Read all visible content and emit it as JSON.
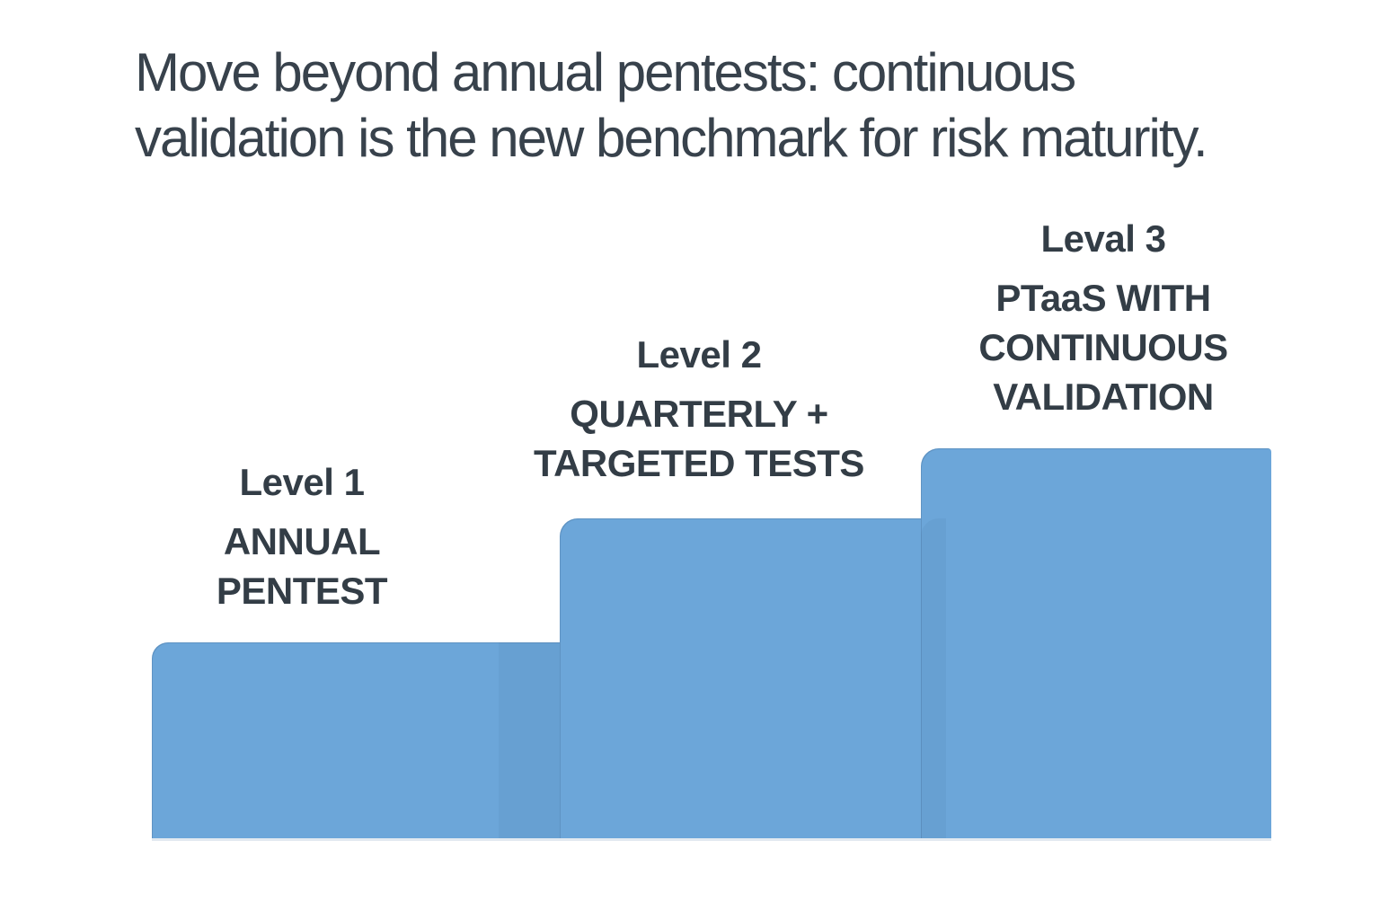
{
  "title": {
    "line1": "Move beyond annual pentests: continuous",
    "line2": "validation is the new benchmark for risk maturity.",
    "full": "Move beyond annual pentests: continuous validation is the new benchmark for risk maturity."
  },
  "colors": {
    "background": "#FFFFFF",
    "bar_blue": "#6CA6D9",
    "title_color": "#38424C",
    "label_color": "#333D46"
  },
  "chart_data": {
    "type": "bar",
    "title": "Move beyond annual pentests: continuous validation is the new benchmark for risk maturity.",
    "categories": [
      "Level 1",
      "Level 2",
      "Leval 3"
    ],
    "values": [
      1,
      2,
      3
    ],
    "relative_heights": [
      0.5,
      0.82,
      1.0
    ],
    "xlabel": "",
    "ylabel": "",
    "legend": false,
    "grid": false,
    "axes_shown": false,
    "bar_color": "#6CA6D9",
    "style_note": "ascending staircase of three flat blue steps, labels above each step",
    "levels": [
      {
        "level_label": "Level 1",
        "name": "ANNUAL PENTEST",
        "name_lines": [
          "ANNUAL",
          "PENTEST"
        ],
        "value": 1
      },
      {
        "level_label": "Level 2",
        "name": "QUARTERLY + TARGETED TESTS",
        "name_lines": [
          "QUARTERLY +",
          "TARGETED TESTS"
        ],
        "value": 2
      },
      {
        "level_label": "Leval 3",
        "name": "PTaaS WITH CONTINUOUS VALIDATION",
        "name_lines": [
          "PTaaS WITH",
          "CONTINUOUS",
          "VALIDATION"
        ],
        "value": 3
      }
    ]
  }
}
